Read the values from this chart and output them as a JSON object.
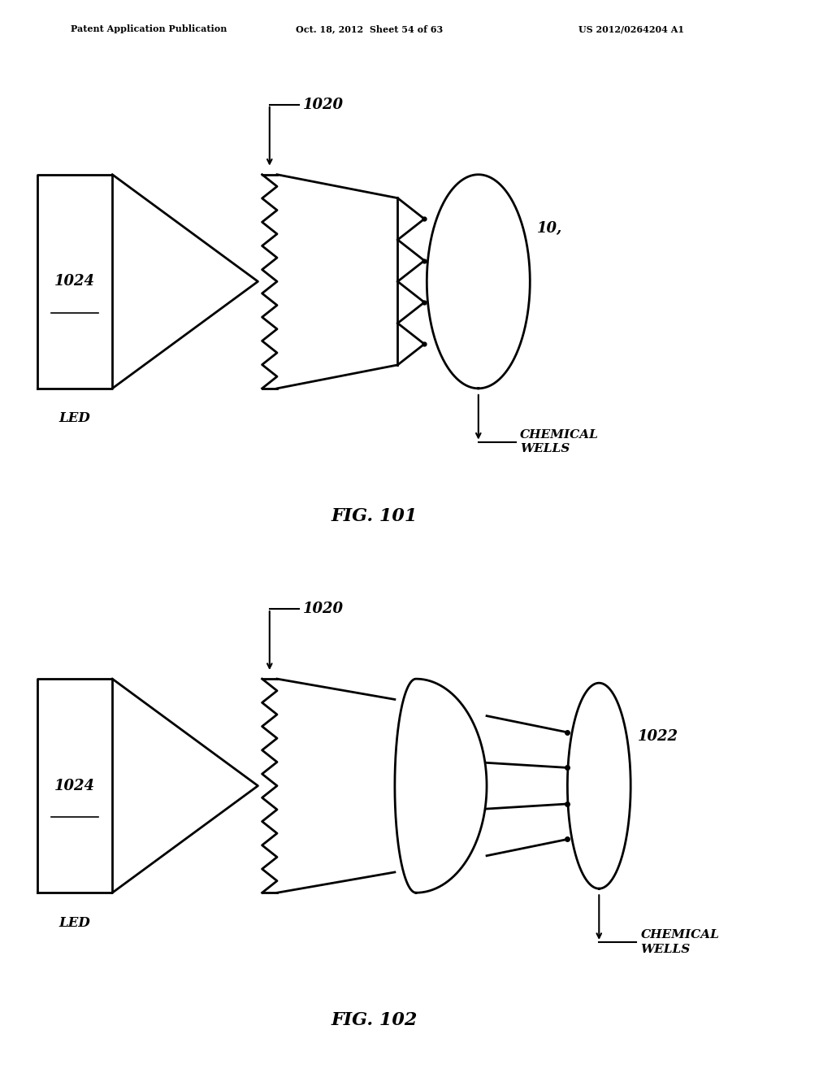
{
  "header_left": "Patent Application Publication",
  "header_mid": "Oct. 18, 2012  Sheet 54 of 63",
  "header_right": "US 2012/0264204 A1",
  "fig1_label": "FIG. 101",
  "fig2_label": "FIG. 102",
  "fig1_label_1020": "1020",
  "fig1_label_1024": "1024",
  "fig1_label_10": "10,",
  "fig1_label_led": "LED",
  "fig1_label_chem": "CHEMICAL\nWELLS",
  "fig2_label_1020": "1020",
  "fig2_label_1024": "1024",
  "fig2_label_1022": "1022",
  "fig2_label_led": "LED",
  "fig2_label_chem": "CHEMICAL\nWELLS",
  "bg_color": "#ffffff",
  "line_color": "#000000"
}
